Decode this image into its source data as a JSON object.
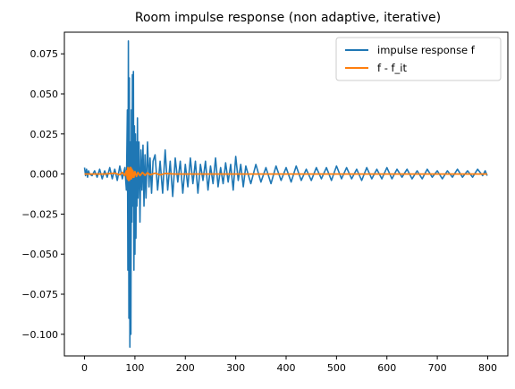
{
  "chart_data": {
    "type": "line",
    "title": "Room impulse response (non adaptive, iterative)",
    "xlabel": "",
    "ylabel": "",
    "xlim": [
      -40,
      840
    ],
    "ylim": [
      -0.1135,
      0.0885
    ],
    "xticks": [
      0,
      100,
      200,
      300,
      400,
      500,
      600,
      700,
      800
    ],
    "yticks": [
      0.075,
      0.05,
      0.025,
      0.0,
      -0.025,
      -0.05,
      -0.075,
      -0.1
    ],
    "ytick_labels": [
      "0.075",
      "0.050",
      "0.025",
      "0.000",
      "−0.025",
      "−0.050",
      "−0.075",
      "−0.100"
    ],
    "grid": false,
    "legend_position": "top-right",
    "series": [
      {
        "name": "impulse response f",
        "color": "#1f77b4",
        "x": [
          0,
          2,
          4,
          6,
          8,
          10,
          15,
          20,
          25,
          30,
          35,
          40,
          45,
          50,
          55,
          60,
          65,
          70,
          75,
          80,
          83,
          85,
          86,
          87,
          88,
          89,
          90,
          91,
          92,
          93,
          94,
          95,
          96,
          97,
          98,
          99,
          100,
          101,
          102,
          103,
          104,
          105,
          106,
          108,
          110,
          112,
          114,
          116,
          118,
          120,
          122,
          125,
          128,
          130,
          133,
          136,
          140,
          145,
          150,
          155,
          160,
          165,
          170,
          175,
          180,
          185,
          190,
          195,
          200,
          205,
          210,
          215,
          220,
          225,
          230,
          235,
          240,
          245,
          250,
          255,
          260,
          265,
          270,
          275,
          280,
          285,
          290,
          295,
          300,
          305,
          310,
          315,
          320,
          330,
          340,
          350,
          360,
          370,
          380,
          390,
          400,
          410,
          420,
          430,
          440,
          450,
          460,
          470,
          480,
          490,
          500,
          510,
          520,
          530,
          540,
          550,
          560,
          570,
          580,
          590,
          600,
          610,
          620,
          630,
          640,
          650,
          660,
          670,
          680,
          690,
          700,
          710,
          720,
          730,
          740,
          750,
          760,
          770,
          780,
          790,
          795,
          799
        ],
        "y": [
          0.004,
          -0.001,
          0.003,
          -0.002,
          0.002,
          0.0,
          -0.001,
          0.002,
          -0.002,
          0.003,
          -0.003,
          0.002,
          -0.002,
          0.004,
          -0.003,
          0.003,
          -0.004,
          0.005,
          -0.003,
          0.004,
          -0.01,
          0.04,
          -0.06,
          0.083,
          -0.09,
          0.06,
          -0.108,
          0.02,
          -0.1,
          0.04,
          -0.03,
          0.062,
          -0.02,
          0.064,
          -0.06,
          0.03,
          -0.05,
          0.025,
          -0.04,
          0.02,
          -0.02,
          0.035,
          -0.015,
          0.02,
          -0.03,
          0.015,
          -0.01,
          0.018,
          -0.02,
          0.012,
          -0.015,
          0.02,
          -0.008,
          0.01,
          -0.012,
          0.008,
          0.012,
          -0.01,
          0.008,
          -0.012,
          0.015,
          -0.01,
          0.008,
          -0.014,
          0.01,
          -0.005,
          0.008,
          -0.012,
          0.006,
          -0.008,
          0.01,
          -0.006,
          0.008,
          -0.012,
          0.006,
          -0.004,
          0.008,
          -0.01,
          0.005,
          -0.006,
          0.01,
          -0.008,
          0.004,
          -0.006,
          0.007,
          -0.005,
          0.006,
          -0.01,
          0.011,
          -0.004,
          0.006,
          -0.008,
          0.005,
          -0.006,
          0.006,
          -0.005,
          0.004,
          -0.006,
          0.005,
          -0.004,
          0.004,
          -0.005,
          0.005,
          -0.004,
          0.003,
          -0.004,
          0.004,
          -0.003,
          0.004,
          -0.004,
          0.005,
          -0.003,
          0.004,
          -0.003,
          0.003,
          -0.004,
          0.004,
          -0.003,
          0.003,
          -0.003,
          0.004,
          -0.003,
          0.003,
          -0.002,
          0.003,
          -0.003,
          0.002,
          -0.003,
          0.003,
          -0.002,
          0.002,
          -0.003,
          0.002,
          -0.002,
          0.003,
          -0.002,
          0.002,
          -0.002,
          0.003,
          -0.001,
          0.002,
          -0.001
        ]
      },
      {
        "name": "f - f_it",
        "color": "#ff7f0e",
        "x": [
          0,
          20,
          40,
          60,
          70,
          75,
          80,
          83,
          85,
          86,
          87,
          88,
          89,
          90,
          91,
          92,
          93,
          94,
          95,
          96,
          98,
          100,
          103,
          106,
          110,
          115,
          120,
          125,
          130,
          140,
          150,
          160,
          180,
          200,
          250,
          300,
          350,
          400,
          500,
          600,
          700,
          760,
          780,
          799
        ],
        "y": [
          0.0,
          0.0,
          0.0,
          0.0005,
          -0.0005,
          0.001,
          -0.001,
          0.002,
          -0.003,
          0.004,
          -0.004,
          0.003,
          -0.004,
          0.004,
          -0.003,
          0.004,
          -0.003,
          0.003,
          -0.002,
          0.002,
          -0.002,
          0.0015,
          -0.0015,
          0.001,
          -0.001,
          0.001,
          -0.0008,
          0.0008,
          -0.0005,
          0.0005,
          -0.0005,
          0.0003,
          0.0,
          0.0,
          0.0,
          0.0,
          0.0,
          0.0,
          0.0,
          0.0,
          0.0,
          0.0,
          0.0,
          0.0
        ]
      }
    ]
  }
}
